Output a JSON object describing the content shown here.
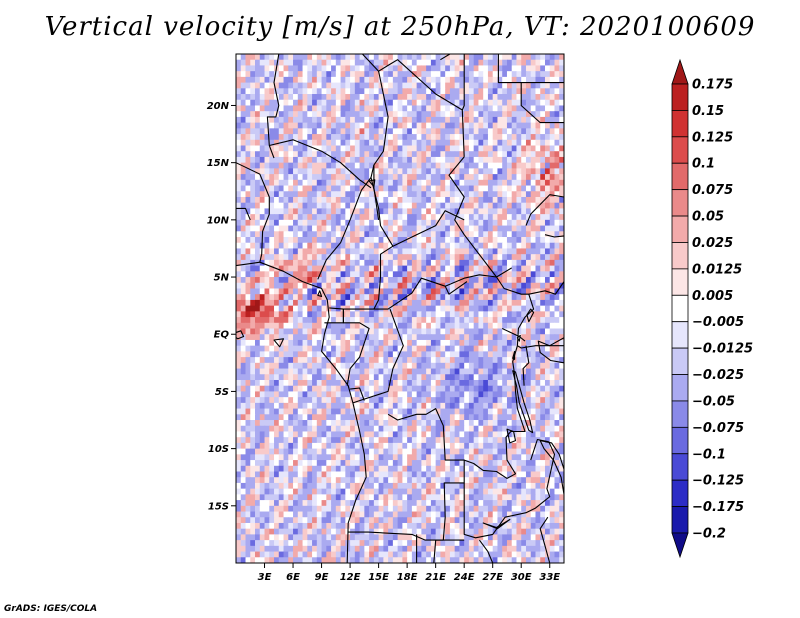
{
  "title": "Vertical velocity [m/s] at 250hPa, VT: 2020100609",
  "credit": "GrADS: IGES/COLA",
  "chart_data": {
    "type": "heatmap",
    "title": "Vertical velocity [m/s] at 250hPa, VT: 2020100609",
    "variable": "Vertical velocity",
    "units": "m/s",
    "level": "250hPa",
    "valid_time": "2020100609",
    "lon_range": [
      0,
      34.5
    ],
    "lat_range": [
      -20,
      24.5
    ],
    "x_ticks": [
      {
        "value": 3,
        "label": "3E"
      },
      {
        "value": 6,
        "label": "6E"
      },
      {
        "value": 9,
        "label": "9E"
      },
      {
        "value": 12,
        "label": "12E"
      },
      {
        "value": 15,
        "label": "15E"
      },
      {
        "value": 18,
        "label": "18E"
      },
      {
        "value": 21,
        "label": "21E"
      },
      {
        "value": 24,
        "label": "24E"
      },
      {
        "value": 27,
        "label": "27E"
      },
      {
        "value": 30,
        "label": "30E"
      },
      {
        "value": 33,
        "label": "33E"
      }
    ],
    "y_ticks": [
      {
        "value": 20,
        "label": "20N"
      },
      {
        "value": 15,
        "label": "15N"
      },
      {
        "value": 10,
        "label": "10N"
      },
      {
        "value": 5,
        "label": "5N"
      },
      {
        "value": 0,
        "label": "EQ"
      },
      {
        "value": -5,
        "label": "5S"
      },
      {
        "value": -10,
        "label": "10S"
      },
      {
        "value": -15,
        "label": "15S"
      }
    ],
    "colorbar": {
      "levels": [
        "0.175",
        "0.15",
        "0.125",
        "0.1",
        "0.075",
        "0.05",
        "0.025",
        "0.0125",
        "0.005",
        "-0.005",
        "-0.0125",
        "-0.025",
        "-0.05",
        "-0.075",
        "-0.1",
        "-0.125",
        "-0.175",
        "-0.2"
      ],
      "colors": [
        "#a01818",
        "#bb2020",
        "#d03232",
        "#dc4c4c",
        "#e26a6a",
        "#ea8a8a",
        "#f2aaaa",
        "#f8caca",
        "#fce6e6",
        "#ffffff",
        "#e6e6fc",
        "#cacaf6",
        "#aaaaf0",
        "#8a8ae8",
        "#6a6ae0",
        "#4a4ad6",
        "#2c2cc6",
        "#1a1aac",
        "#100c88"
      ]
    }
  }
}
